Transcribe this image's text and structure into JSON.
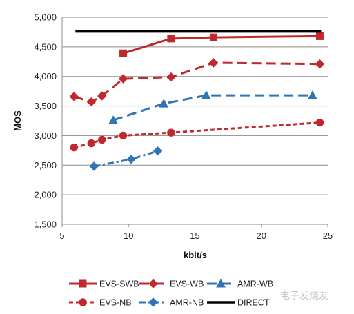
{
  "chart_data": {
    "type": "line",
    "xlabel": "kbit/s",
    "ylabel": "MOS",
    "xlim": [
      5,
      25
    ],
    "ylim": [
      1500,
      5000
    ],
    "x_ticks": [
      "5",
      "10",
      "15",
      "20",
      "25"
    ],
    "y_ticks": [
      "1,500",
      "2,000",
      "2,500",
      "3,000",
      "3,500",
      "4,000",
      "4,500",
      "5,000"
    ],
    "grid": "horizontal",
    "legend_position": "bottom",
    "series": [
      {
        "name": "EVS-SWB",
        "color": "#c0282d",
        "dash": "solid",
        "marker": "square",
        "x": [
          9.6,
          13.2,
          16.4,
          24.4
        ],
        "y": [
          4390,
          4640,
          4660,
          4680
        ]
      },
      {
        "name": "EVS-WB",
        "color": "#c0282d",
        "dash": "long",
        "marker": "diamond",
        "x": [
          5.9,
          7.2,
          8.0,
          9.6,
          13.2,
          16.4,
          24.4
        ],
        "y": [
          3660,
          3570,
          3670,
          3960,
          3990,
          4230,
          4210
        ]
      },
      {
        "name": "AMR-WB",
        "color": "#2f74b5",
        "dash": "long",
        "marker": "triangle",
        "x": [
          8.85,
          12.65,
          15.85,
          23.85
        ],
        "y": [
          3260,
          3540,
          3680,
          3680
        ]
      },
      {
        "name": "EVS-NB",
        "color": "#c0282d",
        "dash": "short",
        "marker": "circle",
        "x": [
          5.9,
          7.2,
          8.0,
          9.6,
          13.2,
          24.4
        ],
        "y": [
          2800,
          2870,
          2930,
          3000,
          3050,
          3220
        ]
      },
      {
        "name": "AMR-NB",
        "color": "#2f74b5",
        "dash": "dashdot",
        "marker": "diamond",
        "x": [
          7.4,
          10.2,
          12.2
        ],
        "y": [
          2480,
          2600,
          2740
        ]
      },
      {
        "name": "DIRECT",
        "color": "#000000",
        "dash": "solid",
        "marker": "none",
        "x": [
          6.0,
          24.5
        ],
        "y": [
          4760,
          4760
        ]
      }
    ]
  },
  "legend_labels": [
    "EVS-SWB",
    "EVS-WB",
    "AMR-WB",
    "EVS-NB",
    "AMR-NB",
    "DIRECT"
  ],
  "watermark": "电子发烧友"
}
